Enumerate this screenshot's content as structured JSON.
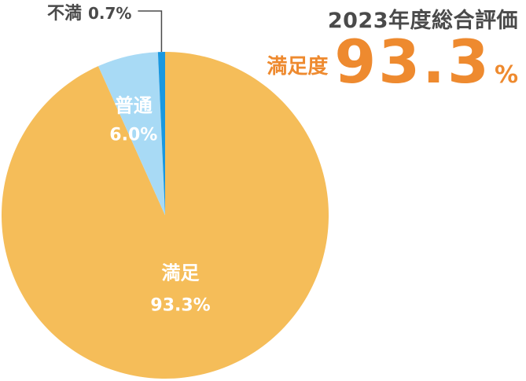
{
  "summary": {
    "heading": "2023年度総合評価",
    "metric_label": "満足度",
    "metric_value": "93.3",
    "metric_unit": "%"
  },
  "chart_data": {
    "type": "pie",
    "title": "",
    "slices": [
      {
        "name": "満足",
        "value": 93.3,
        "label": "93.3%",
        "color": "#f5bd59",
        "label_color": "#ffffff"
      },
      {
        "name": "普通",
        "value": 6.0,
        "label": "6.0%",
        "color": "#a8daf5",
        "label_color": "#ffffff"
      },
      {
        "name": "不満",
        "value": 0.7,
        "label": "0.7%",
        "color": "#1a98e0",
        "label_color": "#4a4a4a"
      }
    ],
    "start": "12 o'clock",
    "direction": "clockwise"
  }
}
